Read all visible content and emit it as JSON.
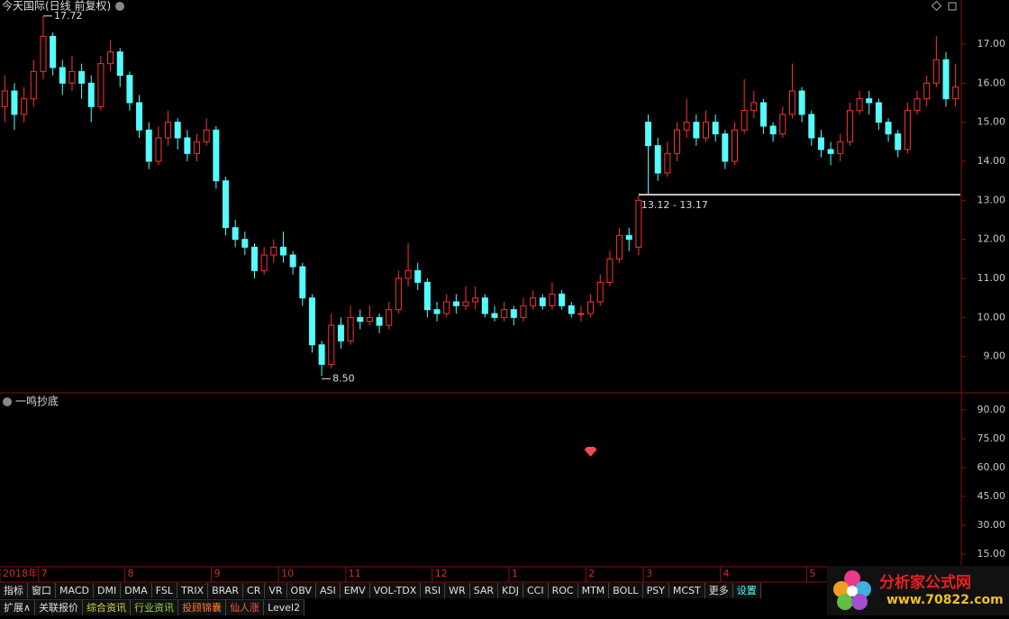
{
  "header": {
    "title": "今天国际(日线 前复权)"
  },
  "chart_data": [
    {
      "type": "candlestick",
      "up_color": "#ff3232",
      "down_color": "#54fcfc",
      "categories": [
        "2018年",
        null,
        null,
        null,
        "7",
        null,
        null,
        null,
        null,
        null,
        null,
        null,
        null,
        "8",
        null,
        null,
        null,
        null,
        null,
        null,
        null,
        null,
        "9",
        null,
        null,
        null,
        null,
        null,
        null,
        "10",
        null,
        null,
        null,
        null,
        null,
        null,
        "11",
        null,
        null,
        null,
        null,
        null,
        null,
        null,
        null,
        "12",
        null,
        null,
        null,
        null,
        null,
        null,
        null,
        "1",
        null,
        null,
        null,
        null,
        null,
        null,
        null,
        "2",
        null,
        null,
        null,
        null,
        null,
        "3",
        null,
        null,
        null,
        null,
        null,
        null,
        null,
        "4",
        null,
        null,
        null,
        null,
        null,
        null,
        null,
        null,
        "5",
        null,
        null,
        null,
        null,
        null,
        null,
        null,
        null,
        null,
        null,
        null,
        null,
        null,
        null,
        null
      ],
      "candles": [
        [
          15.4,
          16.2,
          15.0,
          15.8
        ],
        [
          15.8,
          16.0,
          14.8,
          15.2
        ],
        [
          15.2,
          15.9,
          15.0,
          15.6
        ],
        [
          15.6,
          16.6,
          15.4,
          16.3
        ],
        [
          16.3,
          17.72,
          16.1,
          17.2
        ],
        [
          17.2,
          17.3,
          16.2,
          16.4
        ],
        [
          16.4,
          16.6,
          15.7,
          16.0
        ],
        [
          16.0,
          16.7,
          15.8,
          16.3
        ],
        [
          16.3,
          16.5,
          15.6,
          16.0
        ],
        [
          16.0,
          16.2,
          15.0,
          15.4
        ],
        [
          15.4,
          16.7,
          15.3,
          16.5
        ],
        [
          16.5,
          17.1,
          16.3,
          16.8
        ],
        [
          16.8,
          16.9,
          15.9,
          16.2
        ],
        [
          16.2,
          16.3,
          15.3,
          15.5
        ],
        [
          15.5,
          15.7,
          14.6,
          14.8
        ],
        [
          14.8,
          15.0,
          13.8,
          14.0
        ],
        [
          14.0,
          14.9,
          13.9,
          14.6
        ],
        [
          14.6,
          15.3,
          14.4,
          15.0
        ],
        [
          15.0,
          15.1,
          14.3,
          14.6
        ],
        [
          14.6,
          14.8,
          14.0,
          14.2
        ],
        [
          14.2,
          14.7,
          14.0,
          14.5
        ],
        [
          14.5,
          15.1,
          14.4,
          14.8
        ],
        [
          14.8,
          14.9,
          13.3,
          13.5
        ],
        [
          13.5,
          13.6,
          12.1,
          12.3
        ],
        [
          12.3,
          12.5,
          11.8,
          12.0
        ],
        [
          12.0,
          12.2,
          11.6,
          11.8
        ],
        [
          11.8,
          11.9,
          11.0,
          11.2
        ],
        [
          11.2,
          11.8,
          11.1,
          11.6
        ],
        [
          11.6,
          12.0,
          11.4,
          11.8
        ],
        [
          11.8,
          12.2,
          11.4,
          11.6
        ],
        [
          11.6,
          11.7,
          11.1,
          11.3
        ],
        [
          11.3,
          11.4,
          10.3,
          10.5
        ],
        [
          10.5,
          10.6,
          9.1,
          9.3
        ],
        [
          9.3,
          9.4,
          8.5,
          8.8
        ],
        [
          8.8,
          10.1,
          8.7,
          9.8
        ],
        [
          9.8,
          10.0,
          9.2,
          9.4
        ],
        [
          9.4,
          10.3,
          9.3,
          10.0
        ],
        [
          10.0,
          10.2,
          9.7,
          9.9
        ],
        [
          9.9,
          10.3,
          9.8,
          10.0
        ],
        [
          10.0,
          10.1,
          9.6,
          9.8
        ],
        [
          9.8,
          10.4,
          9.7,
          10.2
        ],
        [
          10.2,
          11.2,
          10.1,
          11.0
        ],
        [
          11.0,
          11.9,
          10.8,
          11.2
        ],
        [
          11.2,
          11.4,
          10.7,
          10.9
        ],
        [
          10.9,
          11.0,
          10.0,
          10.2
        ],
        [
          10.2,
          10.4,
          9.9,
          10.1
        ],
        [
          10.1,
          10.6,
          10.0,
          10.4
        ],
        [
          10.4,
          10.6,
          10.1,
          10.3
        ],
        [
          10.3,
          10.8,
          10.2,
          10.4
        ],
        [
          10.4,
          10.8,
          10.2,
          10.5
        ],
        [
          10.5,
          10.6,
          10.0,
          10.1
        ],
        [
          10.1,
          10.3,
          9.9,
          10.0
        ],
        [
          10.0,
          10.4,
          9.9,
          10.2
        ],
        [
          10.2,
          10.3,
          9.8,
          10.0
        ],
        [
          10.0,
          10.5,
          9.9,
          10.3
        ],
        [
          10.3,
          10.7,
          10.2,
          10.5
        ],
        [
          10.5,
          10.6,
          10.2,
          10.3
        ],
        [
          10.3,
          10.9,
          10.2,
          10.6
        ],
        [
          10.6,
          10.7,
          10.2,
          10.3
        ],
        [
          10.3,
          10.4,
          10.0,
          10.1
        ],
        [
          10.1,
          10.3,
          9.9,
          10.1
        ],
        [
          10.1,
          10.6,
          10.0,
          10.4
        ],
        [
          10.4,
          11.1,
          10.3,
          10.9
        ],
        [
          10.9,
          11.7,
          10.8,
          11.5
        ],
        [
          11.5,
          12.3,
          11.4,
          12.1
        ],
        [
          12.1,
          12.3,
          11.7,
          12.0
        ],
        [
          11.8,
          13.12,
          11.6,
          13.0
        ],
        [
          15.0,
          15.2,
          13.17,
          14.4
        ],
        [
          14.4,
          14.6,
          13.5,
          13.7
        ],
        [
          13.7,
          14.5,
          13.6,
          14.2
        ],
        [
          14.2,
          15.0,
          14.0,
          14.8
        ],
        [
          14.8,
          15.6,
          14.6,
          15.0
        ],
        [
          15.0,
          15.2,
          14.4,
          14.6
        ],
        [
          14.6,
          15.3,
          14.5,
          15.0
        ],
        [
          15.0,
          15.2,
          14.5,
          14.7
        ],
        [
          14.7,
          14.8,
          13.8,
          14.0
        ],
        [
          14.0,
          15.0,
          13.9,
          14.8
        ],
        [
          14.8,
          16.1,
          14.7,
          15.3
        ],
        [
          15.3,
          15.8,
          15.1,
          15.5
        ],
        [
          15.5,
          15.6,
          14.7,
          14.9
        ],
        [
          14.9,
          15.0,
          14.5,
          14.7
        ],
        [
          14.7,
          15.4,
          14.6,
          15.2
        ],
        [
          15.2,
          16.5,
          15.1,
          15.8
        ],
        [
          15.8,
          15.9,
          15.0,
          15.2
        ],
        [
          15.2,
          15.3,
          14.4,
          14.6
        ],
        [
          14.6,
          14.8,
          14.1,
          14.3
        ],
        [
          14.3,
          14.5,
          13.9,
          14.2
        ],
        [
          14.2,
          14.7,
          14.0,
          14.5
        ],
        [
          14.5,
          15.5,
          14.4,
          15.3
        ],
        [
          15.3,
          15.8,
          15.2,
          15.6
        ],
        [
          15.6,
          15.8,
          15.2,
          15.5
        ],
        [
          15.5,
          15.6,
          14.8,
          15.0
        ],
        [
          15.0,
          15.1,
          14.5,
          14.7
        ],
        [
          14.7,
          14.8,
          14.1,
          14.3
        ],
        [
          14.3,
          15.5,
          14.2,
          15.3
        ],
        [
          15.3,
          15.8,
          15.2,
          15.6
        ],
        [
          15.6,
          16.2,
          15.4,
          16.0
        ],
        [
          16.0,
          17.2,
          15.9,
          16.6
        ],
        [
          16.6,
          16.8,
          15.4,
          15.6
        ],
        [
          15.6,
          16.5,
          15.4,
          15.9
        ]
      ],
      "ylim": [
        8.07,
        18.13
      ],
      "yticks": [
        {
          "value": 9,
          "label": "9.00"
        },
        {
          "value": 10,
          "label": "10.00"
        },
        {
          "value": 11,
          "label": "11.00"
        },
        {
          "value": 12,
          "label": "12.00"
        },
        {
          "value": 13,
          "label": "13.00"
        },
        {
          "value": 14,
          "label": "14.00"
        },
        {
          "value": 15,
          "label": "15.00"
        },
        {
          "value": 16,
          "label": "16.00"
        },
        {
          "value": 17,
          "label": "17.00"
        }
      ],
      "annotations": [
        {
          "value": 17.72,
          "label": "17.72"
        },
        {
          "value": 8.5,
          "label": "8.50"
        }
      ],
      "gap": {
        "label": "13.12 - 13.17",
        "values": [
          13.12,
          13.17
        ]
      }
    },
    {
      "type": "signal",
      "title": "一鸣抄底",
      "color": "#f04a55",
      "values": [
        null,
        null,
        null,
        null,
        null,
        null,
        null,
        null,
        null,
        null,
        null,
        null,
        null,
        null,
        null,
        null,
        null,
        null,
        null,
        null,
        null,
        null,
        null,
        null,
        null,
        null,
        null,
        null,
        null,
        null,
        null,
        null,
        null,
        null,
        null,
        null,
        null,
        null,
        null,
        null,
        null,
        null,
        null,
        null,
        null,
        null,
        null,
        null,
        null,
        null,
        null,
        null,
        null,
        null,
        null,
        null,
        null,
        null,
        null,
        null,
        null,
        68,
        null,
        null,
        null,
        null,
        null,
        null,
        null,
        null,
        null,
        null,
        null,
        null,
        null,
        null,
        null,
        null,
        null,
        null,
        null,
        null,
        null,
        null,
        null,
        null,
        null,
        null,
        null,
        null,
        null,
        null,
        null,
        null,
        null,
        null,
        null,
        null,
        null,
        null
      ],
      "ylim": [
        8.9,
        98.4
      ],
      "yticks": [
        {
          "value": 15,
          "label": "15.00"
        },
        {
          "value": 30,
          "label": "30.00"
        },
        {
          "value": 45,
          "label": "45.00"
        },
        {
          "value": 60,
          "label": "60.00"
        },
        {
          "value": 75,
          "label": "75.00"
        },
        {
          "value": 90,
          "label": "90.00"
        }
      ]
    }
  ],
  "tabs": {
    "row1": [
      "指标",
      "窗口",
      "MACD",
      "DMI",
      "DMA",
      "FSL",
      "TRIX",
      "BRAR",
      "CR",
      "VR",
      "OBV",
      "ASI",
      "EMV",
      "VOL-TDX",
      "RSI",
      "WR",
      "SAR",
      "KDJ",
      "CCI",
      "ROC",
      "MTM",
      "BOLL",
      "PSY",
      "MCST",
      "更多",
      "设置"
    ],
    "row2": [
      "扩展∧",
      "关联报价",
      "综合资讯",
      "行业资讯",
      "投顾锦囊",
      "仙人涨",
      "Level2"
    ]
  },
  "logo": {
    "name": "分析家公式网",
    "url": "www.70822.com"
  }
}
